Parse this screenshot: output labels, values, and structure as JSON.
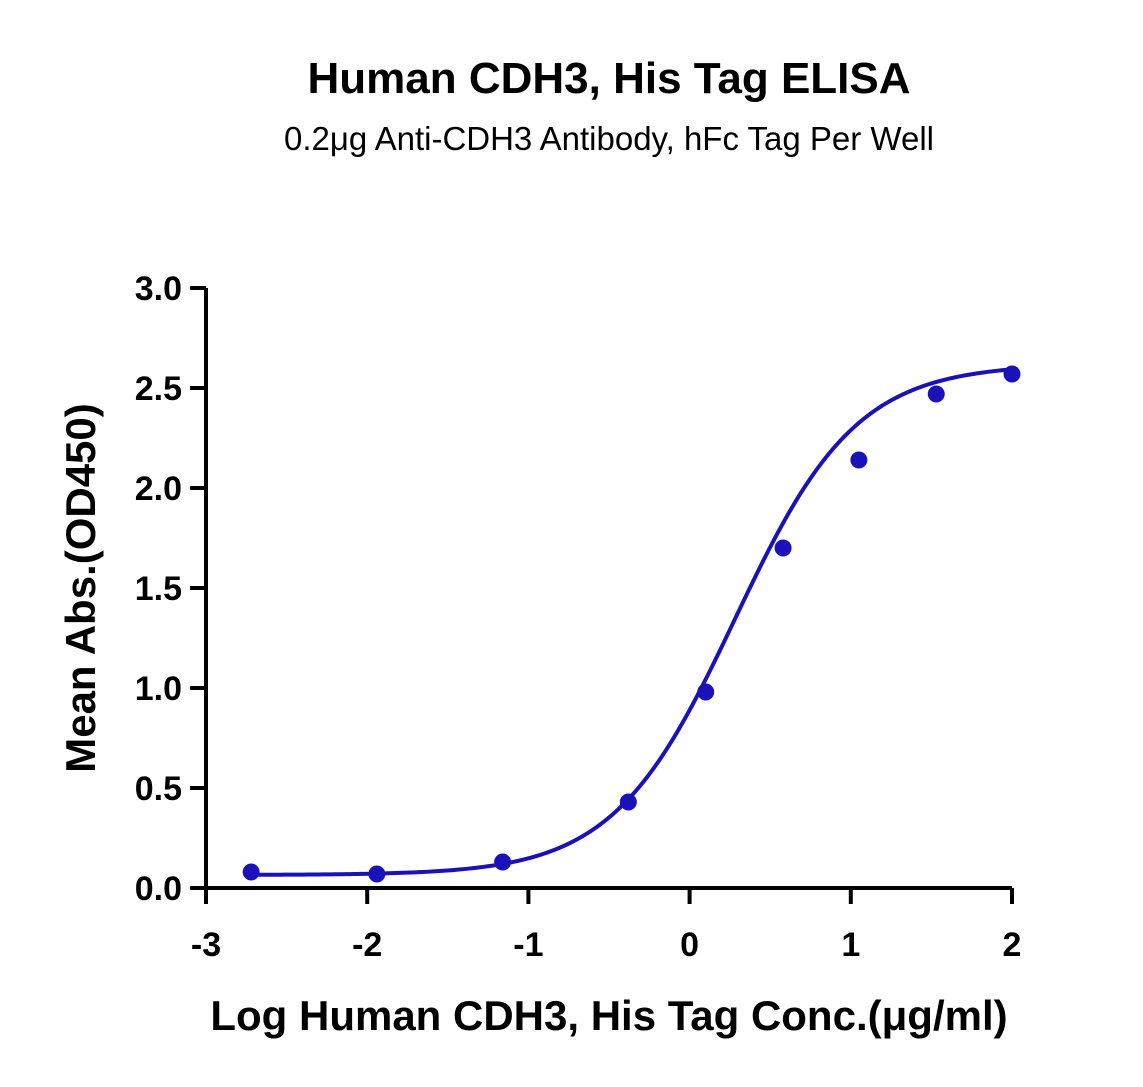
{
  "chart_data": {
    "type": "scatter",
    "title": "Human CDH3, His Tag ELISA",
    "subtitle": "0.2μg Anti-CDH3 Antibody, hFc Tag Per Well",
    "xlabel": "Log Human CDH3, His Tag Conc.(μg/ml)",
    "ylabel": "Mean Abs.(OD450)",
    "xlim": [
      -3,
      2
    ],
    "ylim": [
      0,
      3
    ],
    "xticks": [
      -3,
      -2,
      -1,
      0,
      1,
      2
    ],
    "xtick_labels": [
      "-3",
      "-2",
      "-1",
      "0",
      "1",
      "2"
    ],
    "yticks": [
      0,
      0.5,
      1,
      1.5,
      2,
      2.5,
      3
    ],
    "ytick_labels": [
      "0.0",
      "0.5",
      "1.0",
      "1.5",
      "2.0",
      "2.5",
      "3.0"
    ],
    "grid": false,
    "color": "#1a12b8",
    "series": [
      {
        "x": [
          -2.72,
          -1.94,
          -1.16,
          -0.38,
          0.1,
          0.58,
          1.05,
          1.53,
          2.0
        ],
        "y": [
          0.08,
          0.07,
          0.13,
          0.43,
          0.98,
          1.7,
          2.14,
          2.47,
          2.57
        ],
        "fit": "4PL sigmoidal curve"
      }
    ]
  }
}
